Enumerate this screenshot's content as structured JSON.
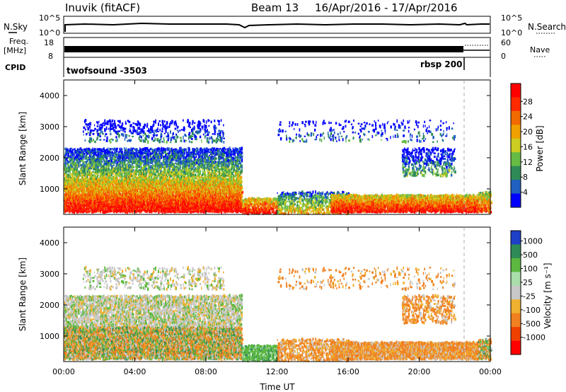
{
  "header": {
    "station": "Inuvik (fitACF)",
    "beam": "Beam 13",
    "date_range": "16/Apr/2016 - 17/Apr/2016"
  },
  "noise_panel": {
    "left_label": "N.Sky",
    "left_ticks": [
      "10^5",
      "10^0"
    ],
    "right_ticks": [
      "10^5",
      "10^0"
    ],
    "right_label": "N.Search"
  },
  "freq_panel": {
    "label_line1": "Freq.",
    "label_line2": "[MHz]",
    "left_ticks": [
      "18",
      "8"
    ],
    "right_ticks": [
      "60",
      "0"
    ],
    "right_label": "Nave"
  },
  "cpid_panel": {
    "label": "CPID",
    "program_1": "twofsound -3503",
    "program_2": "rbsp 200"
  },
  "chart_data": [
    {
      "type": "heatmap",
      "name": "power",
      "ylabel": "Slant Range [km]",
      "yticks": [
        "1000",
        "2000",
        "3000",
        "4000"
      ],
      "xticks": [
        "00:00",
        "04:00",
        "08:00",
        "12:00",
        "16:00",
        "20:00",
        "00:00"
      ],
      "colorbar": {
        "label": "Power [dB]",
        "ticks": [
          "4",
          "8",
          "12",
          "16",
          "20",
          "24",
          "28"
        ],
        "colors": [
          "#0000ff",
          "#2060c0",
          "#2e8b57",
          "#66bb44",
          "#cccc22",
          "#f0a000",
          "#f06a00",
          "#ff2a00",
          "#ff0000"
        ]
      }
    },
    {
      "type": "heatmap",
      "name": "velocity",
      "ylabel": "Slant Range [km]",
      "yticks": [
        "1000",
        "2000",
        "3000",
        "4000"
      ],
      "xticks": [
        "00:00",
        "04:00",
        "08:00",
        "12:00",
        "16:00",
        "20:00",
        "00:00"
      ],
      "xlabel": "Time UT",
      "colorbar": {
        "label": "Velocity [m s⁻¹]",
        "ticks": [
          "1000",
          "500",
          "100",
          "25",
          "-25",
          "-100",
          "-500",
          "-1000"
        ],
        "colors": [
          "#1e40c8",
          "#2e8b57",
          "#5cb840",
          "#aaddaa",
          "#c8c8c8",
          "#f0b030",
          "#f08020",
          "#f04000",
          "#ff0000"
        ]
      }
    }
  ]
}
